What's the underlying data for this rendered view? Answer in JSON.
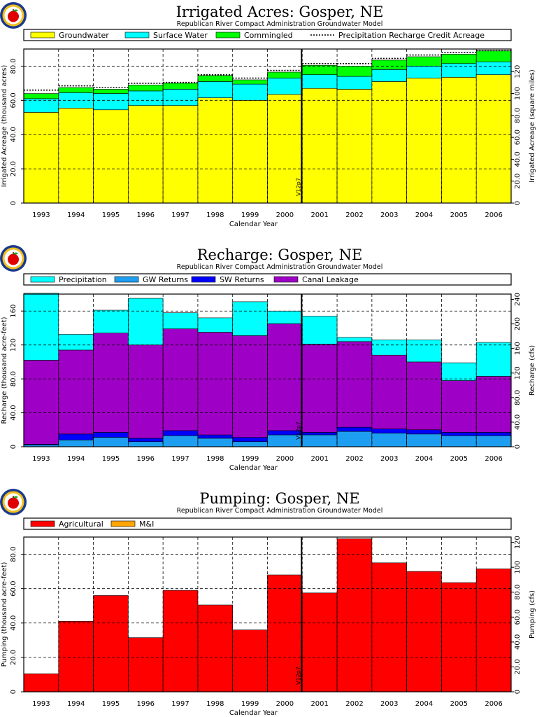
{
  "chart_data": [
    {
      "type": "bar",
      "stacked": true,
      "title": "Irrigated Acres: Gosper, NE",
      "subtitle": "Republican River Compact Administration Groundwater Model",
      "xlabel": "Calendar Year",
      "ylabel": "Irrigated Acreage (thousand acres)",
      "ylabel_right": "Irrigated Acreage (square miles)",
      "ylim": [
        0,
        90
      ],
      "yticks": [
        0,
        20,
        40,
        60,
        80
      ],
      "ytick_labels": [
        "0",
        "20.0",
        "40.0",
        "60.0",
        "80.0"
      ],
      "right_scale": 1.5625,
      "yticks_right": [
        0,
        20,
        40,
        60,
        80,
        100,
        120
      ],
      "ytick_labels_right": [
        "0",
        "20.0",
        "40.0",
        "60.0",
        "80.0",
        "100",
        "120"
      ],
      "grid": true,
      "legend_position": "top",
      "categories": [
        "1993",
        "1994",
        "1995",
        "1996",
        "1997",
        "1998",
        "1999",
        "2000",
        "2001",
        "2002",
        "2003",
        "2004",
        "2005",
        "2006"
      ],
      "series": [
        {
          "name": "Groundwater",
          "color": "#ffff00",
          "values": [
            53,
            55.5,
            54.5,
            57,
            57,
            61.5,
            60,
            63.5,
            67,
            66.5,
            71,
            73,
            73.5,
            75
          ]
        },
        {
          "name": "Surface Water",
          "color": "#00ffff",
          "values": [
            8,
            9,
            9.5,
            8.5,
            9.5,
            9.5,
            9.5,
            9.5,
            8,
            7.5,
            7,
            7,
            8,
            7.5
          ]
        },
        {
          "name": "Commingled",
          "color": "#00ff00",
          "values": [
            3,
            3,
            2.5,
            3.5,
            3.5,
            3.5,
            2.5,
            3.5,
            5.5,
            6,
            5.5,
            5.5,
            5.5,
            6.5
          ]
        }
      ],
      "line_series": {
        "name": "Precipitation Recharge Credit Acreage",
        "style": "dotted",
        "values": [
          66,
          68.5,
          67.5,
          70,
          70.5,
          75,
          73,
          77.5,
          81.5,
          81.5,
          84.5,
          86.5,
          88,
          89
        ]
      },
      "event_marker": {
        "label": "V12p7",
        "position": 7.98
      }
    },
    {
      "type": "bar",
      "stacked": true,
      "title": "Recharge: Gosper, NE",
      "subtitle": "Republican River Compact Administration Groundwater Model",
      "xlabel": "Calendar Year",
      "ylabel": "Recharge (thousand acre-feet)",
      "ylabel_right": "Recharge (cfs)",
      "ylim": [
        0,
        180
      ],
      "yticks": [
        0,
        40,
        80,
        120,
        160
      ],
      "ytick_labels": [
        "0",
        "40.0",
        "80.0",
        "120",
        "160"
      ],
      "right_scale": 1.381,
      "yticks_right": [
        0,
        40,
        80,
        120,
        160,
        200,
        240
      ],
      "ytick_labels_right": [
        "0",
        "40.0",
        "80.0",
        "120",
        "160",
        "200",
        "240"
      ],
      "grid": true,
      "legend_position": "top",
      "categories": [
        "1993",
        "1994",
        "1995",
        "1996",
        "1997",
        "1998",
        "1999",
        "2000",
        "2001",
        "2002",
        "2003",
        "2004",
        "2005",
        "2006"
      ],
      "series": [
        {
          "name": "Precipitation",
          "color": "#00ffff",
          "values": [
            79,
            18.5,
            27,
            55,
            19,
            17,
            40,
            15,
            33,
            5,
            18,
            26,
            21,
            40
          ]
        },
        {
          "name": "GW Returns",
          "color": "#1e9ef0",
          "values": [
            2,
            8,
            11,
            6,
            13,
            10,
            6,
            14,
            14,
            18,
            16,
            15,
            13,
            13
          ]
        },
        {
          "name": "SW Returns",
          "color": "#0000ff",
          "values": [
            1,
            7,
            6,
            4,
            6,
            4,
            5,
            5,
            3,
            5,
            5,
            5,
            4,
            4
          ]
        },
        {
          "name": "Canal Leakage",
          "color": "#9f00c5",
          "values": [
            99,
            99,
            117,
            110,
            120,
            121,
            120,
            126,
            104,
            101,
            87,
            80,
            61,
            66
          ]
        }
      ],
      "event_marker": {
        "label": "V12p7",
        "position": 7.98
      }
    },
    {
      "type": "bar",
      "stacked": true,
      "title": "Pumping: Gosper, NE",
      "subtitle": "Republican River Compact Administration Groundwater Model",
      "xlabel": "Calendar Year",
      "ylabel": "Pumping (thousand acre-feet)",
      "ylabel_right": "Pumping (cfs)",
      "ylim": [
        0,
        90
      ],
      "yticks": [
        0,
        20,
        40,
        60,
        80
      ],
      "ytick_labels": [
        "0",
        "20.0",
        "40.0",
        "60.0",
        "80.0"
      ],
      "right_scale": 1.381,
      "yticks_right": [
        0,
        20,
        40,
        60,
        80,
        100,
        120
      ],
      "ytick_labels_right": [
        "0",
        "20.0",
        "40.0",
        "60.0",
        "80.0",
        "100",
        "120"
      ],
      "grid": true,
      "legend_position": "top",
      "categories": [
        "1993",
        "1994",
        "1995",
        "1996",
        "1997",
        "1998",
        "1999",
        "2000",
        "2001",
        "2002",
        "2003",
        "2004",
        "2005",
        "2006"
      ],
      "series": [
        {
          "name": "Agricultural",
          "color": "#ff0000",
          "values": [
            10.5,
            41,
            56,
            31.5,
            59,
            50.5,
            36,
            68,
            57.5,
            89,
            75,
            70,
            63.5,
            71.5
          ]
        },
        {
          "name": "M&I",
          "color": "#ffa500",
          "values": [
            0,
            0,
            0,
            0,
            0,
            0,
            0,
            0,
            0,
            0,
            0,
            0,
            0,
            0
          ]
        }
      ],
      "event_marker": {
        "label": "V12p7",
        "position": 7.98
      }
    }
  ]
}
